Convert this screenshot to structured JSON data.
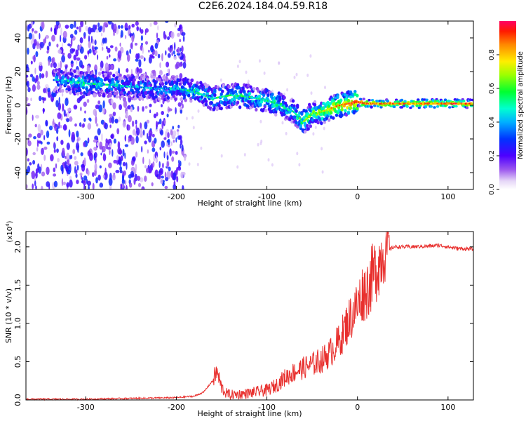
{
  "title": "C2E6.2024.184.04.59.R18",
  "chart_data": [
    {
      "type": "heatmap",
      "xlabel": "Height of straight line (km)",
      "ylabel": "Frequency (Hz)",
      "xlim": [
        -366,
        128
      ],
      "ylim": [
        -50,
        50
      ],
      "xticks": [
        -300,
        -200,
        -100,
        0,
        100
      ],
      "yticks": [
        -40,
        -20,
        0,
        20,
        40
      ],
      "colorbar": {
        "label": "Normalized spectral amplitude",
        "range": [
          0.0,
          1.0
        ],
        "ticks": [
          0.0,
          0.2,
          0.4,
          0.6,
          0.8
        ],
        "tick_labels": [
          "0.0",
          "0.2",
          "0.4",
          "0.6",
          "0.8"
        ],
        "colormap": "rainbow (white → violet → blue → cyan → green → yellow → red)"
      },
      "ridge": {
        "description": "main frequency line (Doppler) vs height",
        "x": [
          -330,
          -300,
          -270,
          -250,
          -220,
          -200,
          -180,
          -160,
          -140,
          -120,
          -100,
          -85,
          -70,
          -60,
          -50,
          -40,
          -30,
          -20,
          -10,
          0,
          10,
          30,
          60,
          90,
          110,
          128
        ],
        "y": [
          15,
          13,
          12,
          11,
          10,
          10,
          8,
          4,
          6,
          5,
          3,
          0,
          -4,
          -10,
          -5,
          -4,
          -2,
          0,
          1,
          2,
          1,
          1,
          1,
          1,
          1,
          1
        ],
        "amplitude": [
          0.35,
          0.45,
          0.4,
          0.35,
          0.35,
          0.4,
          0.45,
          0.45,
          0.5,
          0.45,
          0.45,
          0.5,
          0.45,
          0.55,
          0.6,
          0.65,
          0.75,
          0.8,
          0.85,
          0.9,
          0.85,
          0.8,
          0.8,
          0.85,
          0.85,
          0.8
        ]
      },
      "noise_region_x": [
        -366,
        -190
      ],
      "noise_amplitude_range": [
        0.05,
        0.3
      ]
    },
    {
      "type": "line",
      "xlabel": "Height of straight line (km)",
      "ylabel": "SNR (10 * v/v)",
      "y_multiplier_label": "(x10",
      "y_multiplier_exponent": "4",
      "y_multiplier_close": ")",
      "xlim": [
        -366,
        128
      ],
      "ylim": [
        0.0,
        2.2
      ],
      "xticks": [
        -300,
        -200,
        -100,
        0,
        100
      ],
      "yticks": [
        0.0,
        0.5,
        1.0,
        1.5,
        2.0
      ],
      "ytick_labels": [
        "0.0",
        "0.5",
        "1.0",
        "1.5",
        "2.0"
      ],
      "color": "#e8302e",
      "series": [
        {
          "x": [
            -366,
            -300,
            -250,
            -200,
            -180,
            -170,
            -160,
            -155,
            -150,
            -145,
            -140,
            -130,
            -120,
            -110,
            -100,
            -90,
            -80,
            -70,
            -60,
            -50,
            -40,
            -30,
            -20,
            -10,
            0,
            5,
            10,
            20,
            30,
            40,
            60,
            80,
            90,
            100,
            110,
            128
          ],
          "y": [
            0.01,
            0.01,
            0.02,
            0.03,
            0.05,
            0.1,
            0.25,
            0.35,
            0.15,
            0.08,
            0.06,
            0.07,
            0.08,
            0.1,
            0.12,
            0.18,
            0.28,
            0.35,
            0.4,
            0.45,
            0.5,
            0.6,
            0.75,
            1.0,
            1.2,
            1.35,
            1.4,
            1.65,
            1.92,
            2.0,
            2.0,
            2.01,
            2.02,
            2.0,
            1.98,
            1.97
          ]
        }
      ]
    }
  ]
}
